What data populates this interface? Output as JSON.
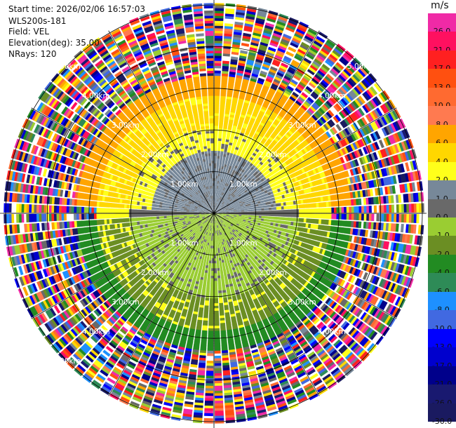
{
  "header": {
    "start_time": "Start time: 2026/02/06 16:57:03",
    "station": "WLS200s-181",
    "field": "Field: VEL",
    "elevation": "Elevation(deg): 35.00",
    "nrays": "NRays: 120"
  },
  "colorbar": {
    "unit": "m/s",
    "levels": [
      {
        "label": "26.0",
        "color": "#f02aa6"
      },
      {
        "label": "21.0",
        "color": "#ff1060"
      },
      {
        "label": "17.0",
        "color": "#ff2020"
      },
      {
        "label": "13.0",
        "color": "#ff5010"
      },
      {
        "label": "10.0",
        "color": "#ff6a30"
      },
      {
        "label": "8.0",
        "color": "#ff7a50"
      },
      {
        "label": "6.0",
        "color": "#ffa500"
      },
      {
        "label": "4.0",
        "color": "#ffd700"
      },
      {
        "label": "2.0",
        "color": "#ffff1a"
      },
      {
        "label": "1.0",
        "color": "#778899"
      },
      {
        "label": "0.0",
        "color": "#696969"
      },
      {
        "label": "-1.0",
        "color": "#9acd32"
      },
      {
        "label": "-2.0",
        "color": "#6b8e23"
      },
      {
        "label": "-4.0",
        "color": "#228b22"
      },
      {
        "label": "-6.0",
        "color": "#2e8b57"
      },
      {
        "label": "-8.0",
        "color": "#1e90ff"
      },
      {
        "label": "-10.0",
        "color": "#4169e1"
      },
      {
        "label": "-13.0",
        "color": "#0000ff"
      },
      {
        "label": "-17.0",
        "color": "#0000cd"
      },
      {
        "label": "-21.0",
        "color": "#00008b"
      },
      {
        "label": "-26.0",
        "color": "#191970"
      },
      {
        "label": "-30.0",
        "color": "#1a1a60"
      }
    ]
  },
  "chart_data": {
    "type": "heatmap",
    "projection": "polar-ppi",
    "field": "VEL",
    "nrays": 120,
    "range_rings_km": [
      1.0,
      2.0,
      3.0,
      4.0,
      5.0
    ],
    "max_range_km": 5.06,
    "ring_labels": [
      {
        "text": "1.00km",
        "ring": 1,
        "quadrant": "top-right"
      },
      {
        "text": "1.00km",
        "ring": 1,
        "quadrant": "bottom-right"
      },
      {
        "text": "1.00km",
        "ring": 1,
        "quadrant": "bottom-left"
      },
      {
        "text": "1.00km",
        "ring": 1,
        "quadrant": "top-left"
      },
      {
        "text": "2.00km",
        "ring": 2,
        "quadrant": "top-right"
      },
      {
        "text": "2.00km",
        "ring": 2,
        "quadrant": "bottom-right"
      },
      {
        "text": "2.00km",
        "ring": 2,
        "quadrant": "bottom-left"
      },
      {
        "text": "2.00km",
        "ring": 2,
        "quadrant": "top-left"
      },
      {
        "text": "3.00km",
        "ring": 3,
        "quadrant": "top-right"
      },
      {
        "text": "3.00km",
        "ring": 3,
        "quadrant": "bottom-right"
      },
      {
        "text": "3.00km",
        "ring": 3,
        "quadrant": "bottom-left"
      },
      {
        "text": "3.00km",
        "ring": 3,
        "quadrant": "top-left"
      },
      {
        "text": "4.00km",
        "ring": 4,
        "quadrant": "top-right"
      },
      {
        "text": "4.00km",
        "ring": 4,
        "quadrant": "bottom-right"
      },
      {
        "text": "4.00km",
        "ring": 4,
        "quadrant": "bottom-left"
      },
      {
        "text": "4.00km",
        "ring": 4,
        "quadrant": "top-left"
      },
      {
        "text": "5.00km",
        "ring": 5,
        "quadrant": "top-right"
      },
      {
        "text": "5.00km",
        "ring": 5,
        "quadrant": "bottom-left"
      },
      {
        "text": "5.00km",
        "ring": 5,
        "quadrant": "top-left"
      }
    ],
    "zones": [
      {
        "range_km": [
          0.0,
          1.5
        ],
        "north": "1.0",
        "south": "-1.0",
        "mix": "0.0"
      },
      {
        "range_km": [
          1.5,
          2.0
        ],
        "north": "2.0",
        "south": "-1.0",
        "mix": "0.0"
      },
      {
        "range_km": [
          2.0,
          2.8
        ],
        "north": "4.0",
        "south": "-2.0",
        "mix": "2.0"
      },
      {
        "range_km": [
          2.8,
          3.3
        ],
        "north": "6.0",
        "south": "-4.0",
        "mix": "noise"
      },
      {
        "range_km": [
          3.3,
          5.06
        ],
        "north": "noise",
        "south": "noise",
        "mix": "noise"
      }
    ]
  }
}
